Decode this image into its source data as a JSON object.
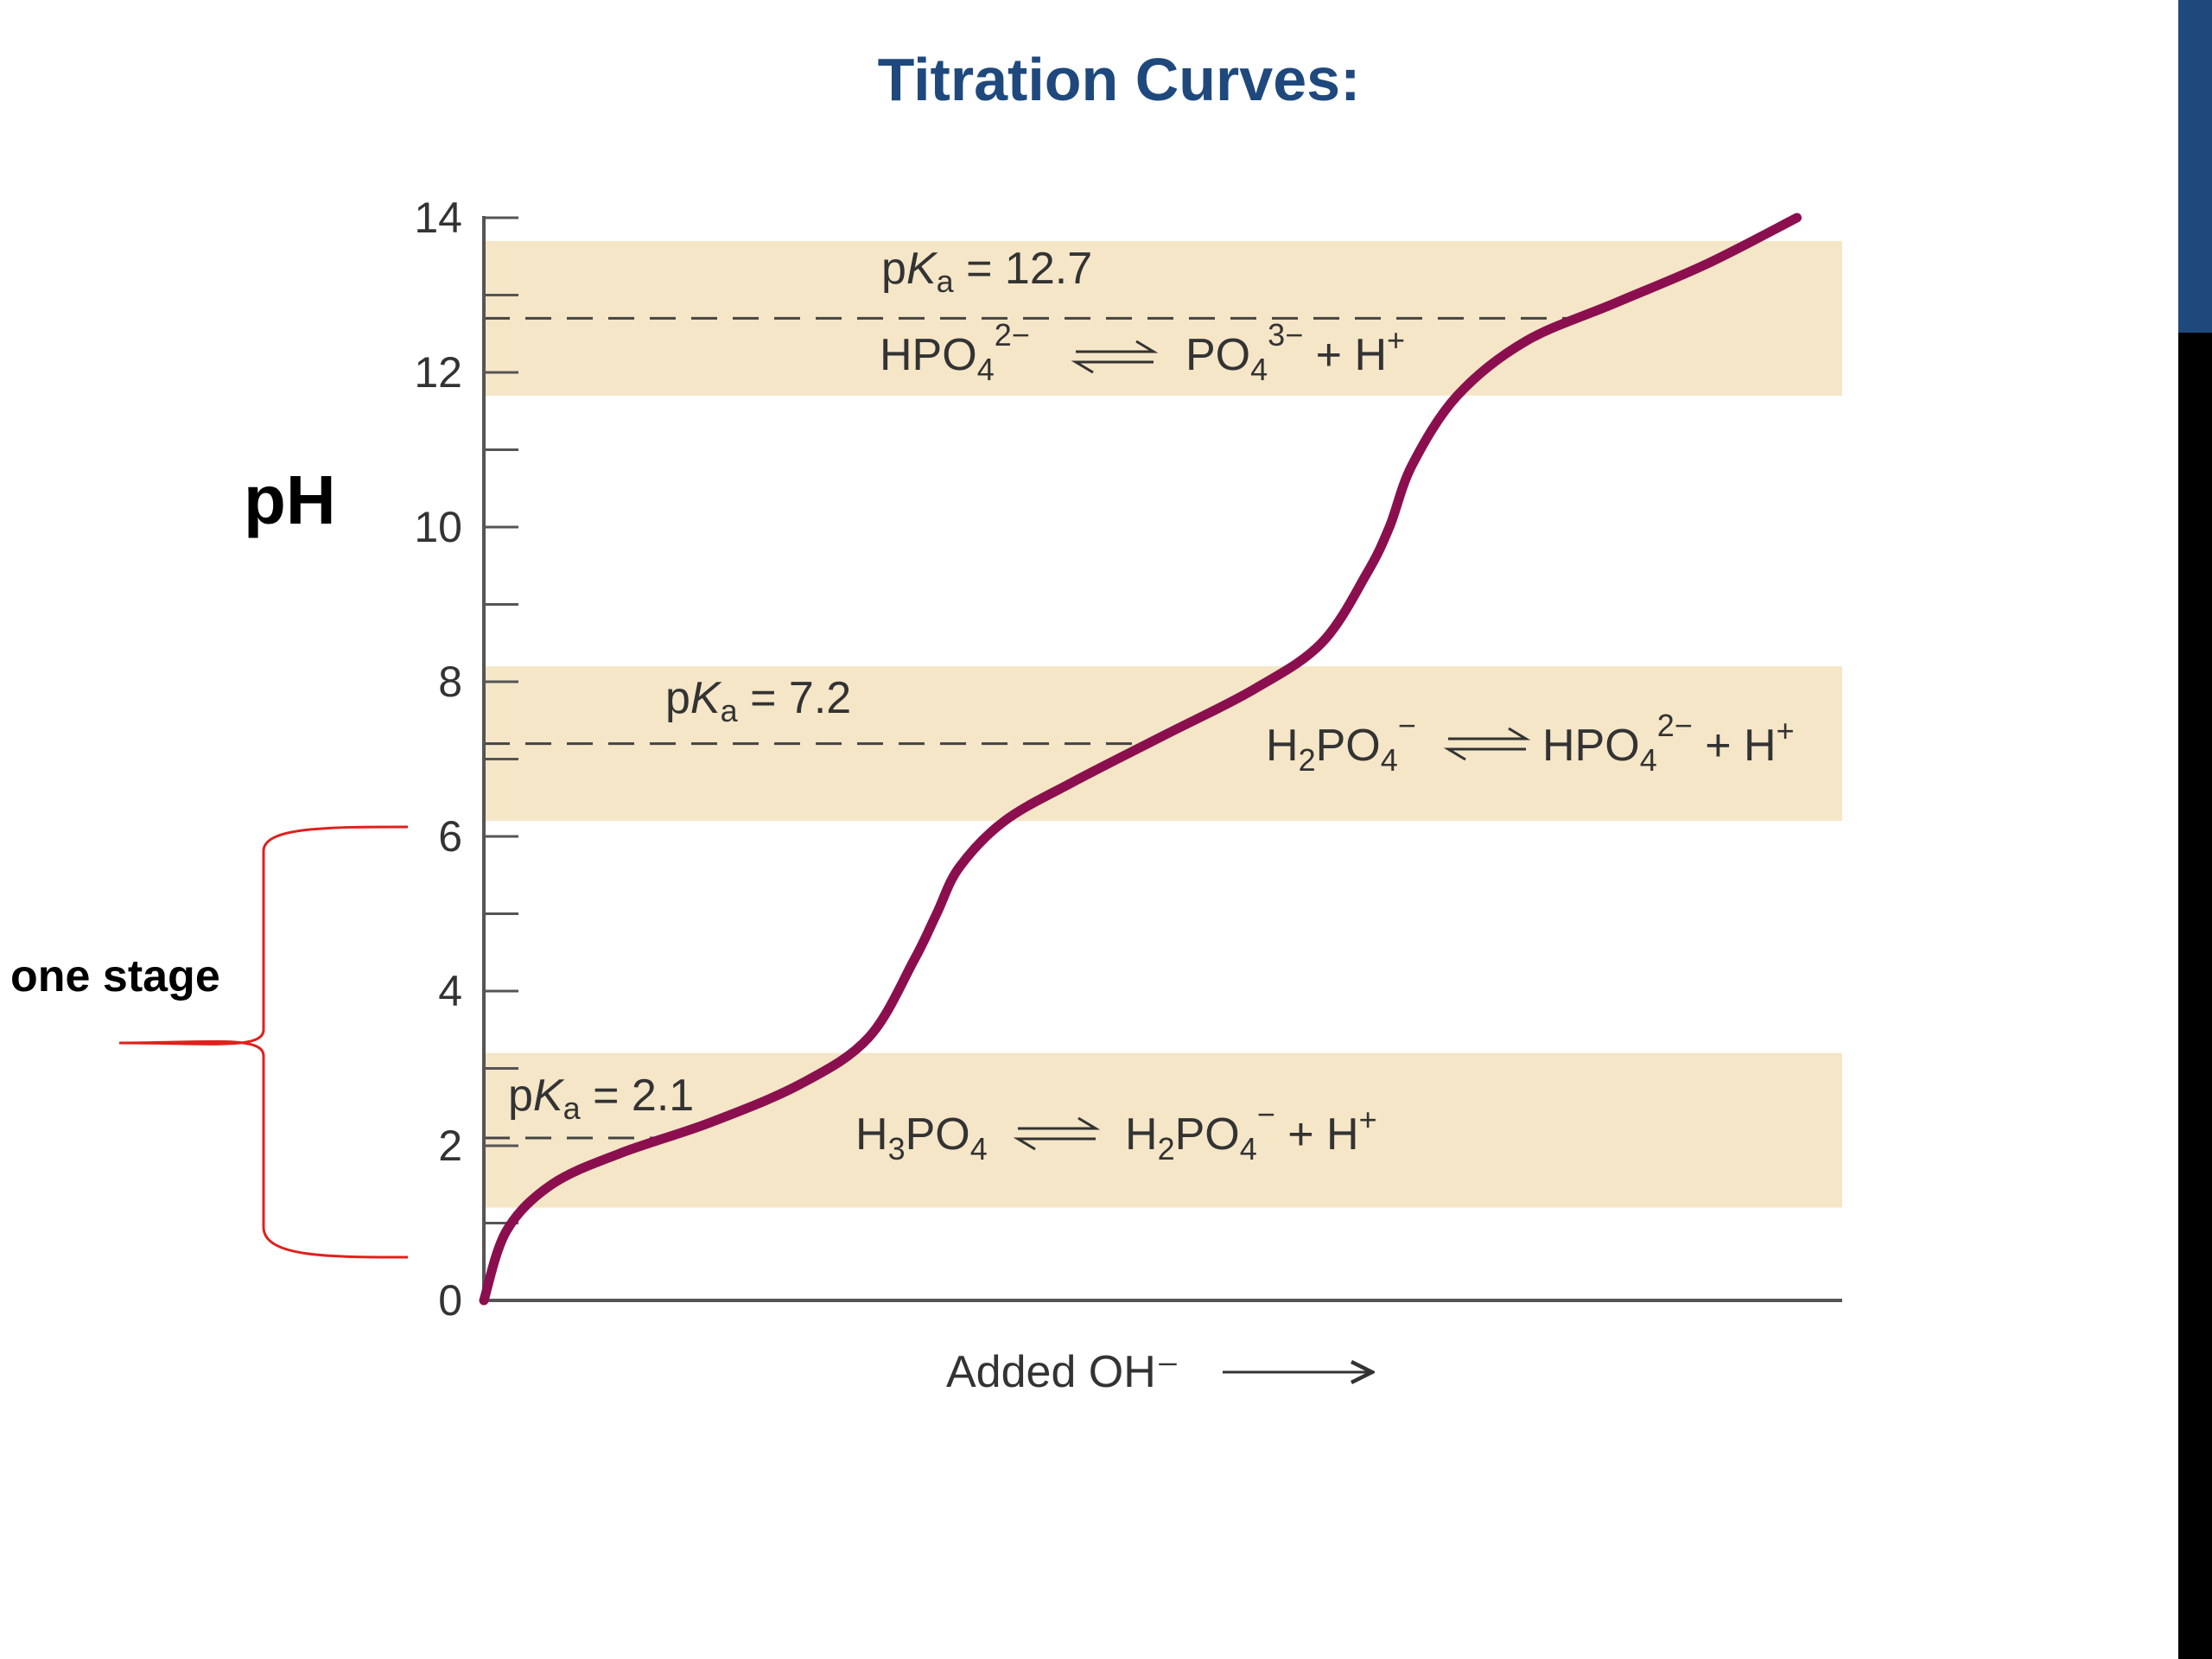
{
  "slide": {
    "title": "Titration Curves:",
    "stage_annotation": "one stage",
    "accent_colors": {
      "title": "#1f497d",
      "bracket": "#e0201c",
      "curve": "#8b0f4f",
      "band": "#f5e6c8"
    }
  },
  "chart_data": {
    "type": "line",
    "ylabel": "pH",
    "xlabel": "Added OH⁻",
    "ylim": [
      0,
      14
    ],
    "y_ticks": [
      "0",
      "2",
      "4",
      "6",
      "8",
      "10",
      "12",
      "14"
    ],
    "x_units": "equivalents of OH⁻ (axis unlabeled)",
    "xlim": [
      0,
      3
    ],
    "grid": false,
    "series": [
      {
        "x": [
          0.0,
          0.05,
          0.15,
          0.3,
          0.5,
          0.7,
          0.85,
          0.95,
          1.0,
          1.05,
          1.15,
          1.3,
          1.5,
          1.7,
          1.85,
          1.95,
          2.0,
          2.05,
          2.15,
          2.3,
          2.5,
          2.7,
          2.9
        ],
        "y": [
          0.0,
          0.9,
          1.5,
          1.9,
          2.3,
          2.8,
          3.4,
          4.4,
          5.0,
          5.6,
          6.2,
          6.7,
          7.3,
          7.9,
          8.5,
          9.4,
          10.0,
          10.8,
          11.7,
          12.4,
          12.9,
          13.4,
          14.0
        ]
      }
    ],
    "pka_lines": [
      {
        "label": "pKa = 2.1",
        "pka": 2.1,
        "band": [
          1.2,
          3.2
        ],
        "equilibrium": {
          "left": "H3PO4",
          "right": "H2PO4− + H+"
        }
      },
      {
        "label": "pKa = 7.2",
        "pka": 7.2,
        "band": [
          6.2,
          8.2
        ],
        "equilibrium": {
          "left": "H2PO4−",
          "right": "HPO4^2− + H+"
        }
      },
      {
        "label": "pKa = 12.7",
        "pka": 12.7,
        "band": [
          11.7,
          13.7
        ],
        "equilibrium": {
          "left": "HPO4^2−",
          "right": "PO4^3− + H+"
        }
      }
    ]
  }
}
